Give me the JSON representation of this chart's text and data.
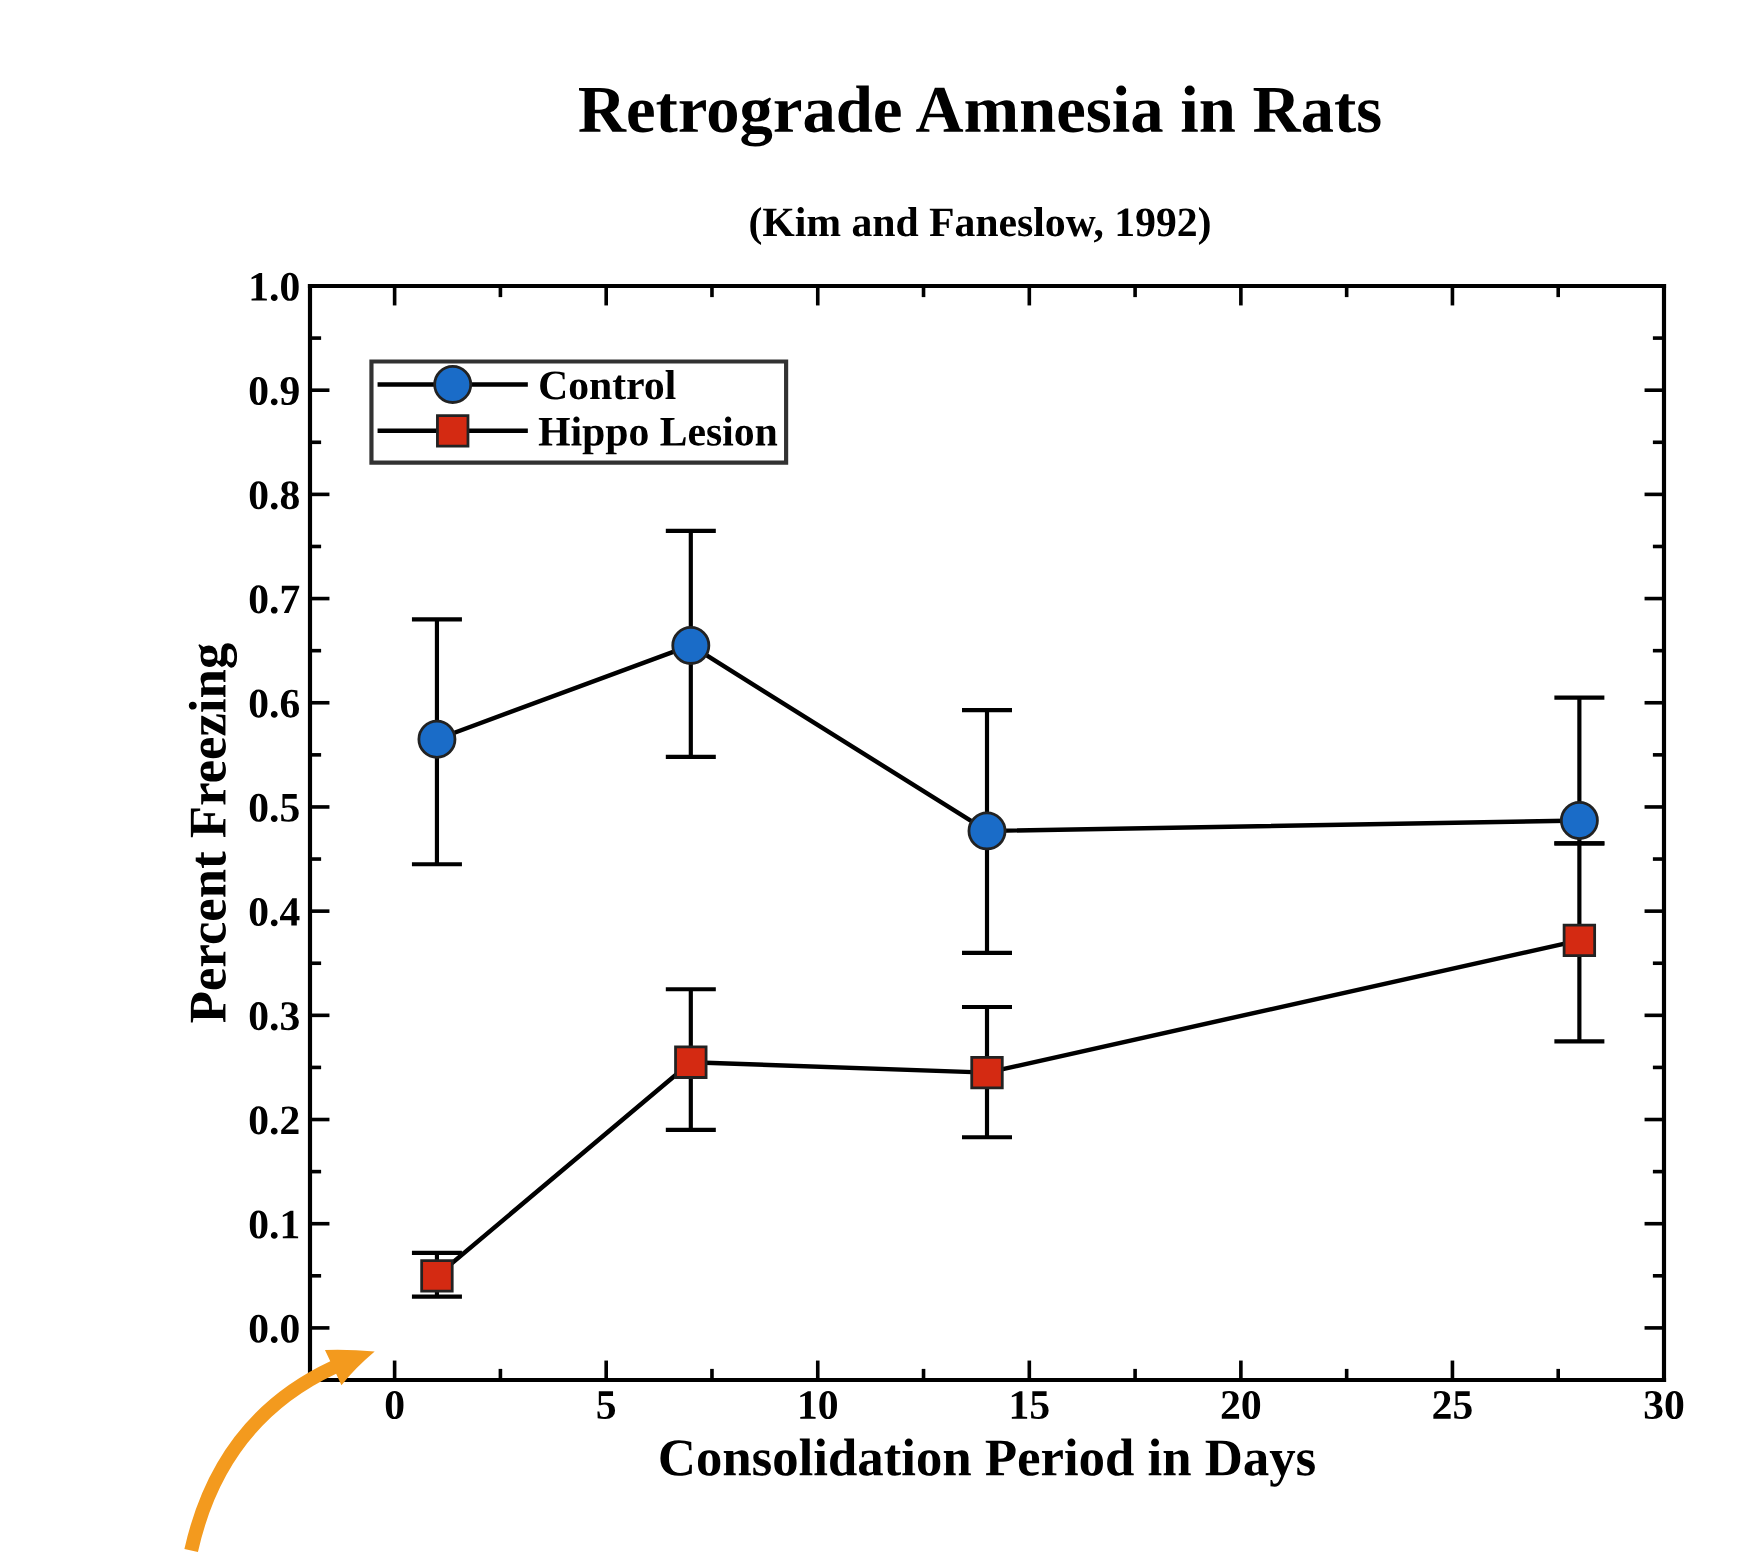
{
  "chart_data": {
    "type": "line",
    "title": "Retrograde Amnesia in Rats",
    "subtitle": "(Kim and Faneslow, 1992)",
    "xlabel": "Consolidation Period in Days",
    "ylabel": "Percent Freezing",
    "x": [
      1,
      7,
      14,
      28
    ],
    "series": [
      {
        "name": "Control",
        "color": "#1a6cc8",
        "marker": "circle",
        "values": [
          0.565,
          0.655,
          0.477,
          0.487
        ],
        "errors": [
          [
            0.445,
            0.68
          ],
          [
            0.548,
            0.765
          ],
          [
            0.36,
            0.593
          ],
          [
            0.465,
            0.605
          ]
        ]
      },
      {
        "name": "Hippo Lesion",
        "color": "#d42a12",
        "marker": "square",
        "values": [
          0.05,
          0.255,
          0.245,
          0.372
        ],
        "errors": [
          [
            0.03,
            0.072
          ],
          [
            0.19,
            0.325
          ],
          [
            0.183,
            0.308
          ],
          [
            0.275,
            0.465
          ]
        ]
      }
    ],
    "xlim": [
      -2,
      30
    ],
    "xticks": [
      0,
      5,
      10,
      15,
      20,
      25,
      30
    ],
    "ylim": [
      -0.05,
      1.0
    ],
    "yticks": [
      {
        "value": 0,
        "label": "0.0"
      },
      0.1,
      0.2,
      0.3,
      0.4,
      0.5,
      0.6,
      0.7,
      0.8,
      0.9,
      {
        "value": 1,
        "label": "1.0"
      }
    ],
    "grid": false,
    "legend": "top left",
    "line_style": "solid"
  }
}
